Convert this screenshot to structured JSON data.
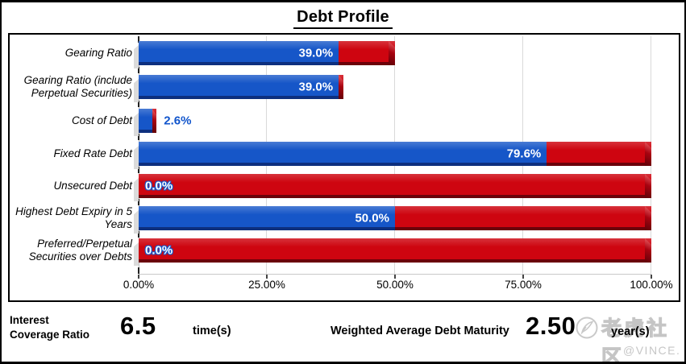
{
  "title": "Debt Profile",
  "chart_data": {
    "type": "bar",
    "orientation": "horizontal",
    "title": "Debt Profile",
    "categories": [
      "Gearing Ratio",
      "Gearing Ratio (include Perpetual Securities)",
      "Cost of Debt",
      "Fixed Rate Debt",
      "Unsecured Debt",
      "Highest Debt Expiry in 5 Years",
      "Preferred/Perpetual Securities over Debts"
    ],
    "series": [
      {
        "name": "actual-value-blue",
        "color": "#1656C8",
        "values": [
          39.0,
          39.0,
          2.6,
          79.6,
          0.0,
          50.0,
          0.0
        ]
      },
      {
        "name": "red-band-extends-to",
        "color": "#CE0510",
        "values": [
          50.0,
          40.0,
          3.5,
          100.0,
          100.0,
          100.0,
          100.0
        ]
      }
    ],
    "value_labels": [
      "39.0%",
      "39.0%",
      "2.6%",
      "79.6%",
      "0.0%",
      "50.0%",
      "0.0%"
    ],
    "x_ticks": [
      "0.00%",
      "25.00%",
      "50.00%",
      "75.00%",
      "100.00%"
    ],
    "x_tick_values": [
      0,
      25,
      50,
      75,
      100
    ],
    "xlim": [
      0,
      100
    ],
    "grid": true,
    "legend": false
  },
  "footer": {
    "icr_label": "Interest Coverage Ratio",
    "icr_value": "6.5",
    "icr_unit": "time(s)",
    "wadm_label": "Weighted Average Debt Maturity",
    "wadm_value": "2.50",
    "wadm_unit": "year(s)"
  },
  "watermark": {
    "brand": "老虎社区",
    "handle": "@VINCE.",
    "icon": "feather-icon"
  },
  "colors": {
    "bar_blue": "#1656C8",
    "bar_blue_dark": "#0D2F7E",
    "bar_red": "#CE0510",
    "bar_red_dark": "#6B020A",
    "grid": "#D9D9D9",
    "outside_label_blue": "#1155CC"
  }
}
